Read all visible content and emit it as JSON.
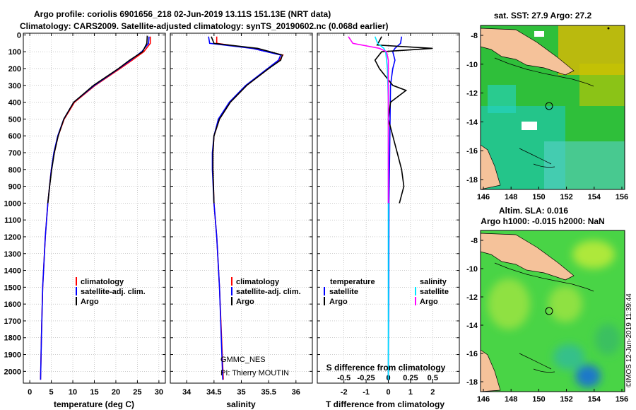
{
  "header": {
    "title_line1": "Argo profile: coriolis 6901656_218 02-Jun-2019 13.11S 151.13E (NRT data)",
    "title_line2": "Climatology: CARS2009. Satellite-adjusted climatology: synTS_20190602.nc (0.068d earlier)"
  },
  "colors": {
    "climatology": "#ff0000",
    "satellite": "#0000ff",
    "argo": "#000000",
    "sat_salinity": "#00e5ff",
    "argo_salinity": "#ff00ff"
  },
  "chart_data": [
    {
      "type": "line",
      "name": "temperature-profile",
      "xlabel": "temperature (deg C)",
      "ylabel": "depth",
      "xlim": [
        -1.5,
        31.5
      ],
      "ylim": [
        2070,
        -10
      ],
      "xticks": [
        "0",
        "5",
        "10",
        "15",
        "20",
        "25",
        "30"
      ],
      "yticks": [
        "0",
        "100",
        "200",
        "300",
        "400",
        "500",
        "600",
        "700",
        "800",
        "900",
        "1000",
        "1100",
        "1200",
        "1300",
        "1400",
        "1500",
        "1600",
        "1700",
        "1800",
        "1900",
        "2000"
      ],
      "legend": [
        "climatology",
        "satellite-adj. clim.",
        "Argo"
      ],
      "series": [
        {
          "name": "climatology",
          "depth": [
            10,
            50,
            100,
            150,
            200,
            300,
            400,
            500,
            600,
            700,
            800,
            1000,
            1200,
            1500,
            1800,
            2050
          ],
          "values": [
            28.0,
            28.0,
            26.5,
            23.8,
            21.0,
            15.2,
            10.4,
            8.0,
            6.6,
            5.7,
            5.0,
            4.2,
            3.6,
            3.0,
            2.7,
            2.5
          ]
        },
        {
          "name": "satellite-adj. clim.",
          "depth": [
            10,
            50,
            100,
            150,
            200,
            300,
            400,
            500,
            600,
            700,
            800,
            1000,
            1200,
            1500,
            1800,
            2050
          ],
          "values": [
            27.7,
            27.6,
            26.0,
            23.4,
            20.7,
            15.0,
            10.2,
            7.9,
            6.5,
            5.6,
            5.0,
            4.2,
            3.6,
            3.0,
            2.7,
            2.5
          ]
        },
        {
          "name": "Argo",
          "depth": [
            5,
            50,
            100,
            150,
            200,
            300,
            400,
            500,
            600,
            700,
            800,
            900,
            1000
          ],
          "values": [
            27.3,
            27.2,
            26.2,
            23.2,
            20.6,
            14.8,
            10.2,
            7.9,
            6.6,
            5.7,
            5.1,
            4.6,
            4.2
          ]
        }
      ]
    },
    {
      "type": "line",
      "name": "salinity-profile",
      "xlabel": "salinity",
      "xlim": [
        33.7,
        36.3
      ],
      "ylim": [
        2070,
        -10
      ],
      "xticks": [
        "34",
        "34.5",
        "35",
        "35.5",
        "36"
      ],
      "legend": [
        "climatology",
        "satellite-adj. clim.",
        "Argo"
      ],
      "series": [
        {
          "name": "climatology",
          "depth": [
            10,
            50,
            80,
            120,
            150,
            200,
            300,
            400,
            500,
            600,
            700,
            800,
            1000,
            1200,
            1500,
            2050
          ],
          "values": [
            34.55,
            34.55,
            35.2,
            35.76,
            35.7,
            35.5,
            35.1,
            34.8,
            34.6,
            34.5,
            34.48,
            34.48,
            34.5,
            34.55,
            34.6,
            34.67
          ]
        },
        {
          "name": "satellite-adj. clim.",
          "depth": [
            10,
            50,
            80,
            120,
            150,
            200,
            300,
            400,
            500,
            600,
            700,
            800,
            1000,
            1200,
            1500,
            2050
          ],
          "values": [
            34.4,
            34.42,
            35.2,
            35.72,
            35.68,
            35.48,
            35.08,
            34.78,
            34.58,
            34.5,
            34.47,
            34.47,
            34.5,
            34.55,
            34.6,
            34.66
          ]
        },
        {
          "name": "Argo",
          "depth": [
            10,
            50,
            80,
            120,
            150,
            200,
            300,
            400,
            500,
            600,
            700,
            800,
            900,
            1000
          ],
          "values": [
            34.45,
            34.5,
            35.3,
            35.75,
            35.72,
            35.5,
            35.1,
            34.8,
            34.6,
            34.5,
            34.48,
            34.48,
            34.49,
            34.5
          ]
        }
      ]
    },
    {
      "type": "line",
      "name": "difference-profile",
      "xlabel": "T difference from climatology",
      "xlabel_top": "S difference from climatology",
      "xlim": [
        -3.2,
        3.2
      ],
      "ylim": [
        2070,
        -10
      ],
      "xticks": [
        "-2",
        "-1",
        "0",
        "1",
        "2"
      ],
      "xticks_top": [
        "-0.5",
        "-0.25",
        "0",
        "0.25",
        "0.5"
      ],
      "legend_left": [
        "temperature",
        "satellite",
        "Argo"
      ],
      "legend_right": [
        "salinity",
        "satellite",
        "Argo"
      ],
      "series": [
        {
          "name": "T satellite",
          "depth": [
            10,
            50,
            80,
            100,
            150,
            200,
            300,
            500,
            800,
            1000,
            1500,
            2050
          ],
          "values": [
            0.6,
            0.55,
            0.3,
            0.2,
            0.3,
            0.2,
            0.1,
            0.08,
            0.05,
            0.03,
            0.02,
            0.0
          ]
        },
        {
          "name": "T Argo",
          "depth": [
            10,
            60,
            80,
            100,
            150,
            200,
            300,
            330,
            400,
            500,
            600,
            700,
            800,
            900,
            1000
          ],
          "values": [
            -0.3,
            -0.5,
            2.0,
            -0.3,
            -0.6,
            -0.4,
            0.2,
            0.8,
            0.1,
            0.0,
            0.2,
            0.4,
            0.6,
            0.7,
            0.5
          ]
        },
        {
          "name": "S satellite",
          "depth": [
            10,
            50,
            80,
            100,
            150,
            200,
            400,
            1000,
            2050
          ],
          "values": [
            -0.15,
            -0.12,
            -0.05,
            -0.03,
            -0.02,
            -0.01,
            0.0,
            0.0,
            0.0
          ]
        },
        {
          "name": "S Argo",
          "depth": [
            10,
            50,
            80,
            100,
            150,
            200,
            400,
            1000
          ],
          "values": [
            -0.45,
            -0.4,
            -0.1,
            -0.02,
            0.0,
            0.0,
            0.0,
            0.0
          ]
        }
      ]
    },
    {
      "type": "heatmap",
      "name": "sst-map",
      "title": "sat. SST: 27.9 Argo: 27.2",
      "xticks": [
        "146",
        "148",
        "150",
        "152",
        "154",
        "156"
      ],
      "yticks": [
        "-8",
        "-10",
        "-12",
        "-14",
        "-16",
        "-18"
      ],
      "float_position": {
        "lon": 151.13,
        "lat": -13.11
      }
    },
    {
      "type": "heatmap",
      "name": "sla-map",
      "title_line1": "Altim. SLA: 0.016",
      "title_line2": "Argo h1000: -0.015 h2000: NaN",
      "xticks": [
        "146",
        "148",
        "150",
        "152",
        "154",
        "156"
      ],
      "yticks": [
        "-8",
        "-10",
        "-12",
        "-14",
        "-16",
        "-18"
      ],
      "float_position": {
        "lon": 151.13,
        "lat": -13.11
      }
    }
  ],
  "credits": {
    "gmmc": "GMMC_NES",
    "pi": "PI: Thierry MOUTIN",
    "imos": "©IMOS 12-Jun-2019 11:39:44"
  }
}
